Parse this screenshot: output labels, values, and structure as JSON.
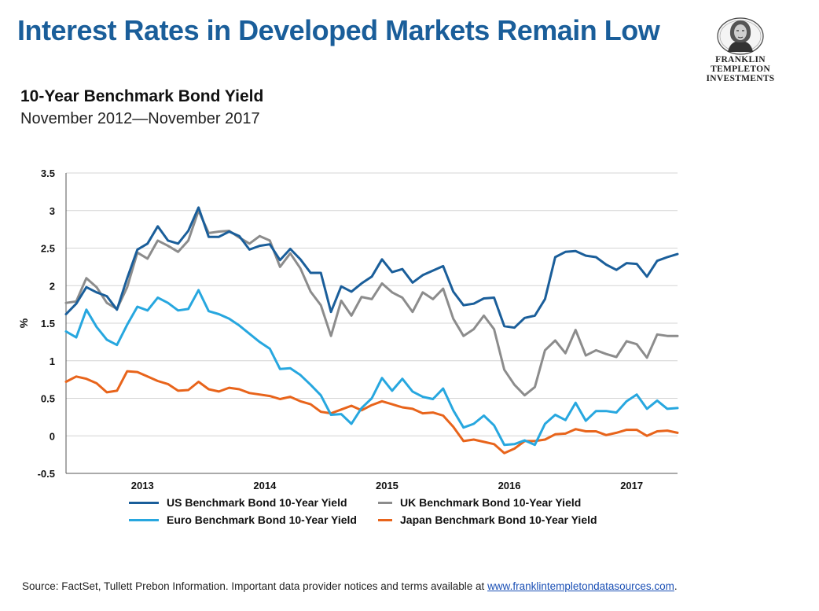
{
  "header": {
    "title": "Interest Rates in Developed Markets Remain Low",
    "logo_line1": "FRANKLIN TEMPLETON",
    "logo_line2": "INVESTMENTS",
    "subtitle": "10-Year Benchmark Bond Yield",
    "date_range": "November 2012—November 2017"
  },
  "source": {
    "text": "Source: FactSet, Tullett Prebon Information. Important data provider notices and terms available at ",
    "link": "www.franklintempletondatasources.com",
    "period": "."
  },
  "colors": {
    "us": "#1a5e9a",
    "uk": "#8c8c8c",
    "euro": "#27a7df",
    "japan": "#e8641b",
    "title": "#1a5e9a",
    "grid": "#d4d4d4"
  },
  "chart_data": {
    "type": "line",
    "ylabel": "%",
    "ylim": [
      -0.5,
      3.5
    ],
    "yticks": [
      "3.5",
      "3",
      "2.5",
      "2",
      "1.5",
      "1",
      "0.5",
      "0",
      "-0.5"
    ],
    "ytick_values": [
      3.5,
      3,
      2.5,
      2,
      1.5,
      1,
      0.5,
      0,
      -0.5
    ],
    "xticks": [
      "2013",
      "2014",
      "2015",
      "2016",
      "2017"
    ],
    "xtick_indices": [
      7.5,
      19.5,
      31.5,
      43.5,
      55.5
    ],
    "grid": true,
    "legend_position": "bottom",
    "n_points": 61,
    "series": [
      {
        "key": "us",
        "name": "US Benchmark Bond 10-Year Yield",
        "values": [
          1.62,
          1.76,
          1.98,
          1.91,
          1.86,
          1.68,
          2.1,
          2.48,
          2.56,
          2.79,
          2.6,
          2.56,
          2.73,
          3.04,
          2.65,
          2.65,
          2.72,
          2.66,
          2.48,
          2.53,
          2.55,
          2.34,
          2.49,
          2.35,
          2.17,
          2.17,
          1.65,
          1.99,
          1.92,
          2.03,
          2.12,
          2.35,
          2.18,
          2.22,
          2.04,
          2.14,
          2.2,
          2.26,
          1.92,
          1.74,
          1.76,
          1.83,
          1.84,
          1.46,
          1.44,
          1.57,
          1.6,
          1.82,
          2.38,
          2.45,
          2.46,
          2.4,
          2.38,
          2.28,
          2.21,
          2.3,
          2.29,
          2.12,
          2.33,
          2.38,
          2.42
        ]
      },
      {
        "key": "uk",
        "name": "UK Benchmark Bond 10-Year Yield",
        "values": [
          1.77,
          1.79,
          2.1,
          1.98,
          1.77,
          1.69,
          1.98,
          2.44,
          2.36,
          2.6,
          2.53,
          2.45,
          2.6,
          3.0,
          2.7,
          2.72,
          2.73,
          2.64,
          2.56,
          2.66,
          2.6,
          2.25,
          2.43,
          2.23,
          1.92,
          1.74,
          1.33,
          1.8,
          1.6,
          1.85,
          1.82,
          2.03,
          1.91,
          1.84,
          1.65,
          1.91,
          1.82,
          1.96,
          1.56,
          1.33,
          1.42,
          1.6,
          1.42,
          0.88,
          0.68,
          0.54,
          0.65,
          1.14,
          1.27,
          1.1,
          1.41,
          1.07,
          1.14,
          1.09,
          1.05,
          1.26,
          1.22,
          1.04,
          1.35,
          1.33,
          1.33
        ]
      },
      {
        "key": "euro",
        "name": "Euro Benchmark Bond 10-Year Yield",
        "values": [
          1.39,
          1.31,
          1.68,
          1.45,
          1.28,
          1.21,
          1.48,
          1.72,
          1.67,
          1.84,
          1.77,
          1.67,
          1.69,
          1.94,
          1.66,
          1.62,
          1.56,
          1.47,
          1.36,
          1.25,
          1.16,
          0.89,
          0.9,
          0.81,
          0.68,
          0.54,
          0.28,
          0.29,
          0.16,
          0.37,
          0.5,
          0.77,
          0.6,
          0.76,
          0.59,
          0.52,
          0.49,
          0.63,
          0.34,
          0.11,
          0.16,
          0.27,
          0.14,
          -0.12,
          -0.11,
          -0.06,
          -0.12,
          0.16,
          0.28,
          0.21,
          0.44,
          0.2,
          0.33,
          0.33,
          0.31,
          0.46,
          0.55,
          0.36,
          0.47,
          0.36,
          0.37
        ]
      },
      {
        "key": "japan",
        "name": "Japan Benchmark Bond 10-Year Yield",
        "values": [
          0.72,
          0.79,
          0.76,
          0.7,
          0.58,
          0.6,
          0.86,
          0.85,
          0.79,
          0.73,
          0.69,
          0.6,
          0.61,
          0.72,
          0.62,
          0.59,
          0.64,
          0.62,
          0.57,
          0.55,
          0.53,
          0.49,
          0.52,
          0.46,
          0.42,
          0.32,
          0.3,
          0.35,
          0.4,
          0.34,
          0.41,
          0.46,
          0.42,
          0.38,
          0.36,
          0.3,
          0.31,
          0.27,
          0.12,
          -0.07,
          -0.05,
          -0.08,
          -0.11,
          -0.23,
          -0.17,
          -0.07,
          -0.07,
          -0.05,
          0.02,
          0.03,
          0.09,
          0.06,
          0.06,
          0.01,
          0.04,
          0.08,
          0.08,
          0.0,
          0.06,
          0.07,
          0.04
        ]
      }
    ]
  }
}
